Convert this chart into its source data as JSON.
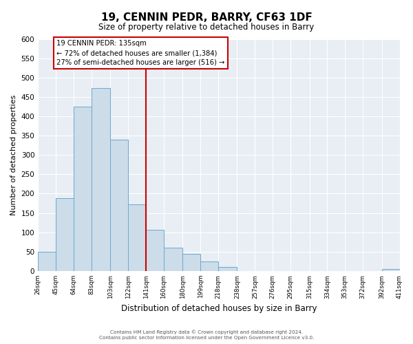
{
  "title": "19, CENNIN PEDR, BARRY, CF63 1DF",
  "subtitle": "Size of property relative to detached houses in Barry",
  "xlabel": "Distribution of detached houses by size in Barry",
  "ylabel": "Number of detached properties",
  "bar_edges": [
    26,
    45,
    64,
    83,
    103,
    122,
    141,
    160,
    180,
    199,
    218,
    238,
    257,
    276,
    295,
    315,
    334,
    353,
    372,
    392,
    411
  ],
  "bar_heights": [
    50,
    188,
    425,
    472,
    340,
    172,
    107,
    60,
    44,
    25,
    11,
    0,
    0,
    0,
    0,
    0,
    0,
    0,
    0,
    5
  ],
  "bar_color": "#ccdce8",
  "bar_edge_color": "#6aaad4",
  "tick_labels": [
    "26sqm",
    "45sqm",
    "64sqm",
    "83sqm",
    "103sqm",
    "122sqm",
    "141sqm",
    "160sqm",
    "180sqm",
    "199sqm",
    "218sqm",
    "238sqm",
    "257sqm",
    "276sqm",
    "295sqm",
    "315sqm",
    "334sqm",
    "353sqm",
    "372sqm",
    "392sqm",
    "411sqm"
  ],
  "vline_x": 141,
  "vline_color": "#cc0000",
  "ylim": [
    0,
    600
  ],
  "yticks": [
    0,
    50,
    100,
    150,
    200,
    250,
    300,
    350,
    400,
    450,
    500,
    550,
    600
  ],
  "annotation_title": "19 CENNIN PEDR: 135sqm",
  "annotation_line1": "← 72% of detached houses are smaller (1,384)",
  "annotation_line2": "27% of semi-detached houses are larger (516) →",
  "annotation_box_color": "#ffffff",
  "annotation_box_edge": "#cc0000",
  "background_color": "#e8eef4",
  "footer_line1": "Contains HM Land Registry data © Crown copyright and database right 2024.",
  "footer_line2": "Contains public sector information licensed under the Open Government Licence v3.0."
}
